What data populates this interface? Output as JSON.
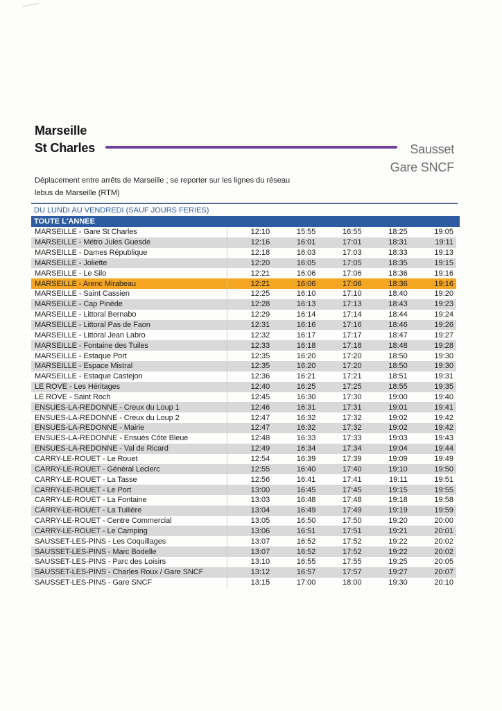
{
  "colors": {
    "header_bar_blue": "#2e5ca3",
    "highlight_orange": "#f5a623",
    "route_line_purple": "#6f3f9d",
    "row_stripe_gray": "#d9d9d9"
  },
  "header": {
    "origin_line1": "Marseille",
    "origin_line2": "St Charles",
    "destination_line1": "Sausset",
    "destination_line2": "Gare SNCF"
  },
  "note": {
    "line1": "Déplacement entre arrêts de Marseille ; se reporter sur les lignes du réseau",
    "line2": "lebus de Marseille (RTM)"
  },
  "table": {
    "period_header": "DU LUNDI AU VENDREDI (SAUF JOURS FERIES)",
    "season_header": "TOUTE L'ANNEE",
    "rows": [
      {
        "stop": "MARSEILLE - Gare St Charles",
        "times": [
          "12:10",
          "15:55",
          "16:55",
          "18:25",
          "19:05"
        ]
      },
      {
        "stop": "MARSEILLE - Métro Jules Guesde",
        "times": [
          "12:16",
          "16:01",
          "17:01",
          "18:31",
          "19:11"
        ]
      },
      {
        "stop": "MARSEILLE - Dames République",
        "times": [
          "12:18",
          "16:03",
          "17:03",
          "18:33",
          "19:13"
        ]
      },
      {
        "stop": "MARSEILLE - Joliette",
        "times": [
          "12:20",
          "16:05",
          "17:05",
          "18:35",
          "19:15"
        ]
      },
      {
        "stop": "MARSEILLE - Le Silo",
        "times": [
          "12:21",
          "16:06",
          "17:06",
          "18:36",
          "19:16"
        ]
      },
      {
        "stop": "MARSEILLE - Arenc Mirabeau",
        "times": [
          "12:21",
          "16:06",
          "17:06",
          "18:36",
          "19:16"
        ],
        "highlight": true
      },
      {
        "stop": "MARSEILLE - Saint Cassien",
        "times": [
          "12:25",
          "16:10",
          "17:10",
          "18:40",
          "19:20"
        ]
      },
      {
        "stop": "MARSEILLE - Cap Pinède",
        "times": [
          "12:28",
          "16:13",
          "17:13",
          "18:43",
          "19:23"
        ]
      },
      {
        "stop": "MARSEILLE - Littoral Bernabo",
        "times": [
          "12:29",
          "16:14",
          "17:14",
          "18:44",
          "19:24"
        ]
      },
      {
        "stop": "MARSEILLE - Littoral Pas de Faon",
        "times": [
          "12:31",
          "16:16",
          "17:16",
          "18:46",
          "19:26"
        ]
      },
      {
        "stop": "MARSEILLE - Littoral Jean Labro",
        "times": [
          "12:32",
          "16:17",
          "17:17",
          "18:47",
          "19:27"
        ]
      },
      {
        "stop": "MARSEILLE - Fontaine des Tuiles",
        "times": [
          "12:33",
          "16:18",
          "17:18",
          "18:48",
          "19:28"
        ]
      },
      {
        "stop": "MARSEILLE - Estaque Port",
        "times": [
          "12:35",
          "16:20",
          "17:20",
          "18:50",
          "19:30"
        ]
      },
      {
        "stop": "MARSEILLE - Espace Mistral",
        "times": [
          "12:35",
          "16:20",
          "17:20",
          "18:50",
          "19:30"
        ]
      },
      {
        "stop": "MARSEILLE - Estaque Castejon",
        "times": [
          "12:36",
          "16:21",
          "17:21",
          "18:51",
          "19:31"
        ]
      },
      {
        "stop": "LE ROVE - Les Héritages",
        "times": [
          "12:40",
          "16:25",
          "17:25",
          "18:55",
          "19:35"
        ]
      },
      {
        "stop": "LE ROVE - Saint Roch",
        "times": [
          "12:45",
          "16:30",
          "17:30",
          "19:00",
          "19:40"
        ]
      },
      {
        "stop": "ENSUES-LA-REDONNE - Creux du Loup 1",
        "times": [
          "12:46",
          "16:31",
          "17:31",
          "19:01",
          "19:41"
        ]
      },
      {
        "stop": "ENSUES-LA-REDONNE - Creux du Loup 2",
        "times": [
          "12:47",
          "16:32",
          "17:32",
          "19:02",
          "19:42"
        ]
      },
      {
        "stop": "ENSUES-LA-REDONNE - Mairie",
        "times": [
          "12:47",
          "16:32",
          "17:32",
          "19:02",
          "19:42"
        ]
      },
      {
        "stop": "ENSUES-LA-REDONNE - Ensuès Côte Bleue",
        "times": [
          "12:48",
          "16:33",
          "17:33",
          "19:03",
          "19:43"
        ]
      },
      {
        "stop": "ENSUES-LA-REDONNE - Val de Ricard",
        "times": [
          "12:49",
          "16:34",
          "17:34",
          "19:04",
          "19:44"
        ]
      },
      {
        "stop": "CARRY-LE-ROUET - Le Rouet",
        "times": [
          "12:54",
          "16:39",
          "17:39",
          "19:09",
          "19:49"
        ]
      },
      {
        "stop": "CARRY-LE-ROUET - Général Leclerc",
        "times": [
          "12:55",
          "16:40",
          "17:40",
          "19:10",
          "19:50"
        ]
      },
      {
        "stop": "CARRY-LE-ROUET - La Tasse",
        "times": [
          "12:56",
          "16:41",
          "17:41",
          "19:11",
          "19:51"
        ]
      },
      {
        "stop": "CARRY-LE-ROUET - Le Port",
        "times": [
          "13:00",
          "16:45",
          "17:45",
          "19:15",
          "19:55"
        ]
      },
      {
        "stop": "CARRY-LE-ROUET - La Fontaine",
        "times": [
          "13:03",
          "16:48",
          "17:48",
          "19:18",
          "19:58"
        ]
      },
      {
        "stop": "CARRY-LE-ROUET - La Tuilière",
        "times": [
          "13:04",
          "16:49",
          "17:49",
          "19:19",
          "19:59"
        ]
      },
      {
        "stop": "CARRY-LE-ROUET - Centre Commercial",
        "times": [
          "13:05",
          "16:50",
          "17:50",
          "19:20",
          "20:00"
        ]
      },
      {
        "stop": "CARRY-LE-ROUET - Le Camping",
        "times": [
          "13:06",
          "16:51",
          "17:51",
          "19:21",
          "20:01"
        ]
      },
      {
        "stop": "SAUSSET-LES-PINS - Les Coquillages",
        "times": [
          "13:07",
          "16:52",
          "17:52",
          "19:22",
          "20:02"
        ]
      },
      {
        "stop": "SAUSSET-LES-PINS - Marc Bodelle",
        "times": [
          "13:07",
          "16:52",
          "17:52",
          "19:22",
          "20:02"
        ]
      },
      {
        "stop": "SAUSSET-LES-PINS - Parc des Loisirs",
        "times": [
          "13:10",
          "16:55",
          "17:55",
          "19:25",
          "20:05"
        ]
      },
      {
        "stop": "SAUSSET-LES-PINS - Charles Roux / Gare SNCF",
        "times": [
          "13:12",
          "16:57",
          "17:57",
          "19:27",
          "20:07"
        ]
      },
      {
        "stop": "SAUSSET-LES-PINS - Gare SNCF",
        "times": [
          "13:15",
          "17:00",
          "18:00",
          "19:30",
          "20:10"
        ]
      }
    ]
  }
}
